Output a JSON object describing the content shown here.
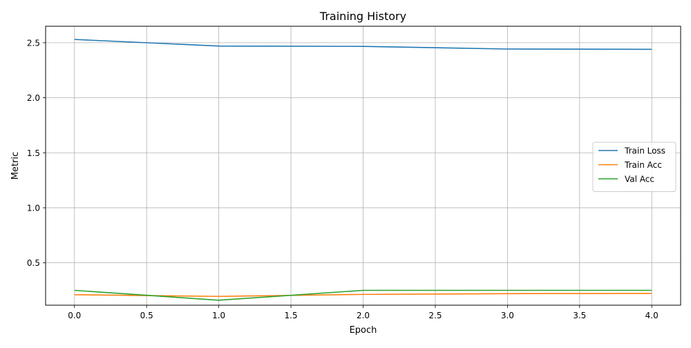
{
  "chart_data": {
    "type": "line",
    "title": "Training History",
    "xlabel": "Epoch",
    "ylabel": "Metric",
    "xlim": [
      -0.2,
      4.2
    ],
    "ylim": [
      0.115,
      2.65
    ],
    "x_ticks": [
      0.0,
      0.5,
      1.0,
      1.5,
      2.0,
      2.5,
      3.0,
      3.5,
      4.0
    ],
    "x_tick_labels": [
      "0.0",
      "0.5",
      "1.0",
      "1.5",
      "2.0",
      "2.5",
      "3.0",
      "3.5",
      "4.0"
    ],
    "y_ticks": [
      0.5,
      1.0,
      1.5,
      2.0,
      2.5
    ],
    "y_tick_labels": [
      "0.5",
      "1.0",
      "1.5",
      "2.0",
      "2.5"
    ],
    "grid": true,
    "legend_position": "center-right",
    "x": [
      0,
      1,
      2,
      3,
      4
    ],
    "series": [
      {
        "name": "Train Loss",
        "color": "#1f77b4",
        "values": [
          2.53,
          2.47,
          2.467,
          2.443,
          2.44
        ]
      },
      {
        "name": "Train Acc",
        "color": "#ff7f0e",
        "values": [
          0.21,
          0.195,
          0.213,
          0.22,
          0.222
        ]
      },
      {
        "name": "Val Acc",
        "color": "#2ca02c",
        "values": [
          0.25,
          0.16,
          0.25,
          0.25,
          0.25
        ]
      }
    ]
  }
}
